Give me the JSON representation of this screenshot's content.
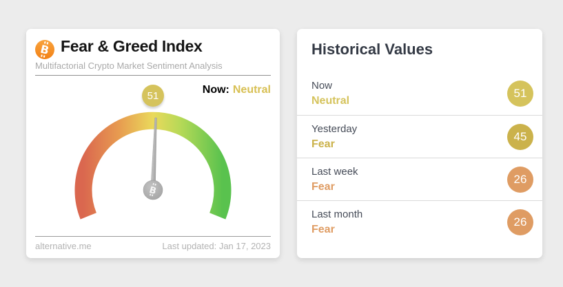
{
  "colors": {
    "page_bg": "#ececec",
    "gold": "#d5c35c",
    "dark_gold": "#cbb24b",
    "orange": "#df9c63",
    "bitcoin_orange": "#f7931a",
    "needle_gray": "#b4b4b4"
  },
  "gauge_card": {
    "title": "Fear & Greed Index",
    "subtitle": "Multifactorial Crypto Market Sentiment Analysis",
    "now_label": "Now:",
    "now_value": "Neutral",
    "now_value_color": "#d8c054",
    "badge_value": "51",
    "badge_color": "#d5c35c",
    "footer": {
      "source": "alternative.me",
      "last_updated": "Last updated: Jan 17, 2023"
    }
  },
  "history_card": {
    "title": "Historical Values",
    "rows": [
      {
        "label": "Now",
        "classification": "Neutral",
        "value": "51",
        "color": "#d5c35c"
      },
      {
        "label": "Yesterday",
        "classification": "Fear",
        "value": "45",
        "color": "#cbb24b"
      },
      {
        "label": "Last week",
        "classification": "Fear",
        "value": "26",
        "color": "#df9c63"
      },
      {
        "label": "Last month",
        "classification": "Fear",
        "value": "26",
        "color": "#df9c63"
      }
    ]
  },
  "chart_data": {
    "type": "gauge",
    "title": "Fear & Greed Index",
    "value": 51,
    "min": 0,
    "max": 100,
    "classification": "Neutral",
    "arc_sweep_degrees": 224,
    "color_scale": [
      "#da674f",
      "#e79a50",
      "#ead95b",
      "#b5d957",
      "#59c24e"
    ],
    "historical": [
      {
        "label": "Now",
        "value": 51,
        "classification": "Neutral"
      },
      {
        "label": "Yesterday",
        "value": 45,
        "classification": "Fear"
      },
      {
        "label": "Last week",
        "value": 26,
        "classification": "Fear"
      },
      {
        "label": "Last month",
        "value": 26,
        "classification": "Fear"
      }
    ]
  }
}
